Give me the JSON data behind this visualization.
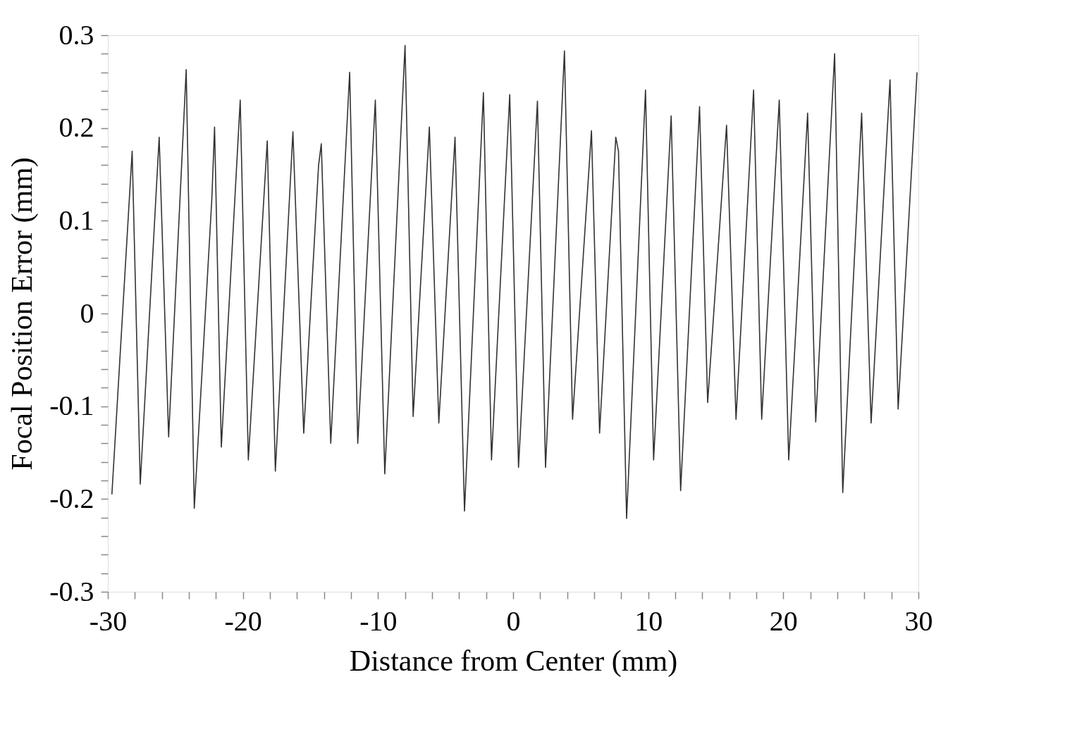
{
  "chart_data": {
    "type": "line",
    "xlabel": "Distance from Center (mm)",
    "ylabel": "Focal Position Error (mm)",
    "xlim": [
      -30,
      30
    ],
    "ylim": [
      -0.3,
      0.3
    ],
    "xticks": [
      -30,
      {
        "value": -28,
        "label": null
      },
      {
        "value": -26,
        "label": null
      },
      {
        "value": -24,
        "label": null
      },
      {
        "value": -22,
        "label": null
      },
      -20,
      {
        "value": -18,
        "label": null
      },
      {
        "value": -16,
        "label": null
      },
      {
        "value": -14,
        "label": null
      },
      {
        "value": -12,
        "label": null
      },
      -10,
      {
        "value": -8,
        "label": null
      },
      {
        "value": -6,
        "label": null
      },
      {
        "value": -4,
        "label": null
      },
      {
        "value": -2,
        "label": null
      },
      0,
      {
        "value": 2,
        "label": null
      },
      {
        "value": 4,
        "label": null
      },
      {
        "value": 6,
        "label": null
      },
      {
        "value": 8,
        "label": null
      },
      10,
      {
        "value": 12,
        "label": null
      },
      {
        "value": 14,
        "label": null
      },
      {
        "value": 16,
        "label": null
      },
      {
        "value": 18,
        "label": null
      },
      20,
      {
        "value": 22,
        "label": null
      },
      {
        "value": 24,
        "label": null
      },
      {
        "value": 26,
        "label": null
      },
      {
        "value": 28,
        "label": null
      },
      30
    ],
    "yticks": [
      -0.3,
      {
        "value": -0.28,
        "label": null
      },
      {
        "value": -0.26,
        "label": null
      },
      {
        "value": -0.24,
        "label": null
      },
      {
        "value": -0.22,
        "label": null
      },
      -0.2,
      {
        "value": -0.18,
        "label": null
      },
      {
        "value": -0.16,
        "label": null
      },
      {
        "value": -0.14,
        "label": null
      },
      {
        "value": -0.12,
        "label": null
      },
      -0.1,
      {
        "value": -0.08,
        "label": null
      },
      {
        "value": -0.06,
        "label": null
      },
      {
        "value": -0.04,
        "label": null
      },
      {
        "value": -0.02,
        "label": null
      },
      0,
      {
        "value": 0.02,
        "label": null
      },
      {
        "value": 0.04,
        "label": null
      },
      {
        "value": 0.06,
        "label": null
      },
      {
        "value": 0.08,
        "label": null
      },
      0.1,
      {
        "value": 0.12,
        "label": null
      },
      {
        "value": 0.14,
        "label": null
      },
      {
        "value": 0.16,
        "label": null
      },
      {
        "value": 0.18,
        "label": null
      },
      0.2,
      {
        "value": 0.22,
        "label": null
      },
      {
        "value": 0.24,
        "label": null
      },
      {
        "value": 0.26,
        "label": null
      },
      {
        "value": 0.28,
        "label": null
      },
      0.3
    ],
    "grid": false,
    "marker": "none",
    "line_style": "solid",
    "series": [
      {
        "color": "#333333",
        "x": [
          -29.7,
          -28.2,
          -27.6,
          -26.2,
          -25.5,
          -24.2,
          -23.6,
          -22.3,
          -22.1,
          -21.6,
          -20.2,
          -19.6,
          -18.2,
          -17.6,
          -16.3,
          -15.5,
          -14.4,
          -14.2,
          -13.5,
          -12.1,
          -11.5,
          -10.2,
          -9.5,
          -8.0,
          -7.4,
          -6.2,
          -5.5,
          -4.3,
          -3.6,
          -2.2,
          -1.6,
          -0.25,
          0.4,
          1.8,
          2.4,
          3.8,
          4.4,
          5.8,
          6.4,
          7.6,
          7.8,
          8.4,
          9.8,
          10.4,
          11.7,
          12.4,
          13.8,
          14.4,
          15.8,
          16.5,
          17.8,
          18.4,
          19.7,
          20.4,
          21.8,
          22.4,
          23.8,
          24.4,
          25.8,
          26.5,
          27.9,
          28.5,
          29.9
        ],
        "values": [
          -0.195,
          0.175,
          -0.184,
          0.19,
          -0.133,
          0.263,
          -0.21,
          0.124,
          0.201,
          -0.144,
          0.23,
          -0.158,
          0.186,
          -0.17,
          0.196,
          -0.129,
          0.16,
          0.183,
          -0.14,
          0.26,
          -0.14,
          0.23,
          -0.173,
          0.289,
          -0.111,
          0.201,
          -0.118,
          0.19,
          -0.213,
          0.238,
          -0.158,
          0.236,
          -0.166,
          0.229,
          -0.166,
          0.283,
          -0.114,
          0.197,
          -0.129,
          0.19,
          0.175,
          -0.221,
          0.241,
          -0.158,
          0.213,
          -0.191,
          0.223,
          -0.096,
          0.203,
          -0.114,
          0.241,
          -0.114,
          0.23,
          -0.158,
          0.216,
          -0.117,
          0.28,
          -0.193,
          0.216,
          -0.118,
          0.252,
          -0.103,
          0.26
        ]
      }
    ]
  }
}
